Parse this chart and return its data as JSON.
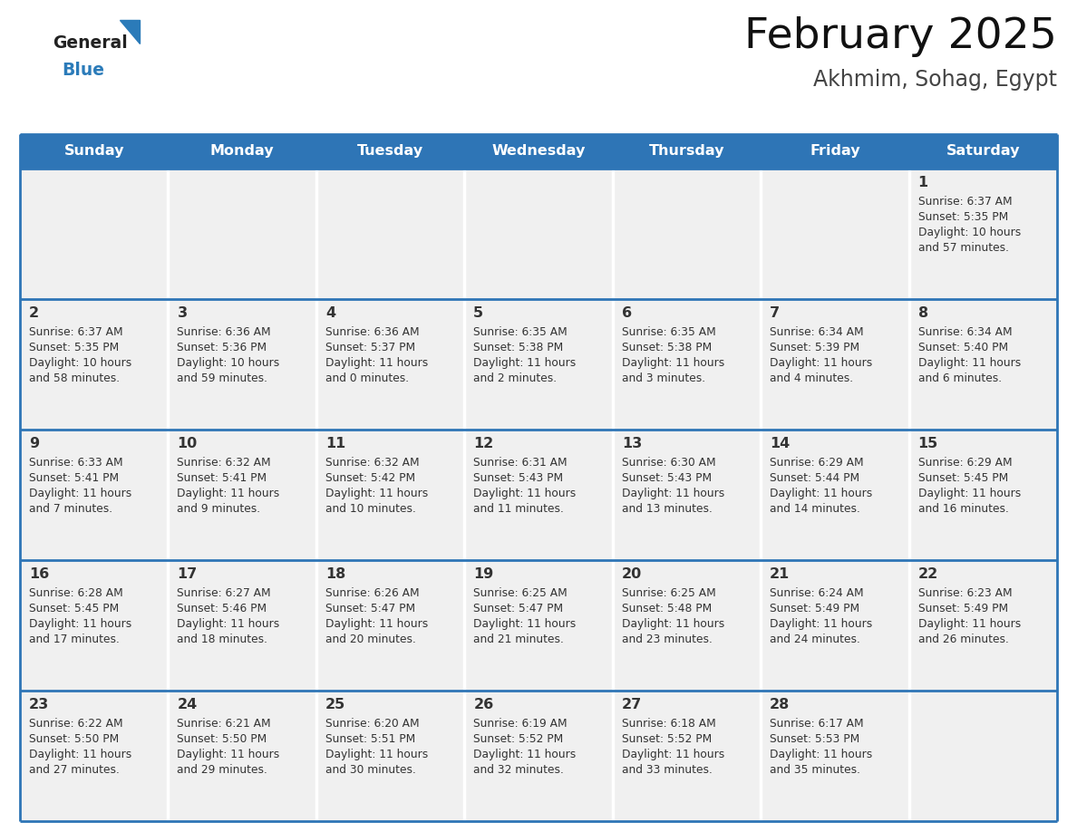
{
  "title": "February 2025",
  "subtitle": "Akhmim, Sohag, Egypt",
  "header_color": "#2E75B6",
  "header_text_color": "#FFFFFF",
  "day_names": [
    "Sunday",
    "Monday",
    "Tuesday",
    "Wednesday",
    "Thursday",
    "Friday",
    "Saturday"
  ],
  "bg_color": "#FFFFFF",
  "cell_bg_color": "#F0F0F0",
  "row_border_color": "#2E75B6",
  "col_border_color": "#FFFFFF",
  "text_color": "#333333",
  "day_num_color": "#333333",
  "logo_general_color": "#222222",
  "logo_blue_color": "#2B7BB9",
  "calendar_data": [
    [
      null,
      null,
      null,
      null,
      null,
      null,
      {
        "day": 1,
        "sunrise": "6:37 AM",
        "sunset": "5:35 PM",
        "daylight": "10 hours\nand 57 minutes."
      }
    ],
    [
      {
        "day": 2,
        "sunrise": "6:37 AM",
        "sunset": "5:35 PM",
        "daylight": "10 hours\nand 58 minutes."
      },
      {
        "day": 3,
        "sunrise": "6:36 AM",
        "sunset": "5:36 PM",
        "daylight": "10 hours\nand 59 minutes."
      },
      {
        "day": 4,
        "sunrise": "6:36 AM",
        "sunset": "5:37 PM",
        "daylight": "11 hours\nand 0 minutes."
      },
      {
        "day": 5,
        "sunrise": "6:35 AM",
        "sunset": "5:38 PM",
        "daylight": "11 hours\nand 2 minutes."
      },
      {
        "day": 6,
        "sunrise": "6:35 AM",
        "sunset": "5:38 PM",
        "daylight": "11 hours\nand 3 minutes."
      },
      {
        "day": 7,
        "sunrise": "6:34 AM",
        "sunset": "5:39 PM",
        "daylight": "11 hours\nand 4 minutes."
      },
      {
        "day": 8,
        "sunrise": "6:34 AM",
        "sunset": "5:40 PM",
        "daylight": "11 hours\nand 6 minutes."
      }
    ],
    [
      {
        "day": 9,
        "sunrise": "6:33 AM",
        "sunset": "5:41 PM",
        "daylight": "11 hours\nand 7 minutes."
      },
      {
        "day": 10,
        "sunrise": "6:32 AM",
        "sunset": "5:41 PM",
        "daylight": "11 hours\nand 9 minutes."
      },
      {
        "day": 11,
        "sunrise": "6:32 AM",
        "sunset": "5:42 PM",
        "daylight": "11 hours\nand 10 minutes."
      },
      {
        "day": 12,
        "sunrise": "6:31 AM",
        "sunset": "5:43 PM",
        "daylight": "11 hours\nand 11 minutes."
      },
      {
        "day": 13,
        "sunrise": "6:30 AM",
        "sunset": "5:43 PM",
        "daylight": "11 hours\nand 13 minutes."
      },
      {
        "day": 14,
        "sunrise": "6:29 AM",
        "sunset": "5:44 PM",
        "daylight": "11 hours\nand 14 minutes."
      },
      {
        "day": 15,
        "sunrise": "6:29 AM",
        "sunset": "5:45 PM",
        "daylight": "11 hours\nand 16 minutes."
      }
    ],
    [
      {
        "day": 16,
        "sunrise": "6:28 AM",
        "sunset": "5:45 PM",
        "daylight": "11 hours\nand 17 minutes."
      },
      {
        "day": 17,
        "sunrise": "6:27 AM",
        "sunset": "5:46 PM",
        "daylight": "11 hours\nand 18 minutes."
      },
      {
        "day": 18,
        "sunrise": "6:26 AM",
        "sunset": "5:47 PM",
        "daylight": "11 hours\nand 20 minutes."
      },
      {
        "day": 19,
        "sunrise": "6:25 AM",
        "sunset": "5:47 PM",
        "daylight": "11 hours\nand 21 minutes."
      },
      {
        "day": 20,
        "sunrise": "6:25 AM",
        "sunset": "5:48 PM",
        "daylight": "11 hours\nand 23 minutes."
      },
      {
        "day": 21,
        "sunrise": "6:24 AM",
        "sunset": "5:49 PM",
        "daylight": "11 hours\nand 24 minutes."
      },
      {
        "day": 22,
        "sunrise": "6:23 AM",
        "sunset": "5:49 PM",
        "daylight": "11 hours\nand 26 minutes."
      }
    ],
    [
      {
        "day": 23,
        "sunrise": "6:22 AM",
        "sunset": "5:50 PM",
        "daylight": "11 hours\nand 27 minutes."
      },
      {
        "day": 24,
        "sunrise": "6:21 AM",
        "sunset": "5:50 PM",
        "daylight": "11 hours\nand 29 minutes."
      },
      {
        "day": 25,
        "sunrise": "6:20 AM",
        "sunset": "5:51 PM",
        "daylight": "11 hours\nand 30 minutes."
      },
      {
        "day": 26,
        "sunrise": "6:19 AM",
        "sunset": "5:52 PM",
        "daylight": "11 hours\nand 32 minutes."
      },
      {
        "day": 27,
        "sunrise": "6:18 AM",
        "sunset": "5:52 PM",
        "daylight": "11 hours\nand 33 minutes."
      },
      {
        "day": 28,
        "sunrise": "6:17 AM",
        "sunset": "5:53 PM",
        "daylight": "11 hours\nand 35 minutes."
      },
      null
    ]
  ]
}
